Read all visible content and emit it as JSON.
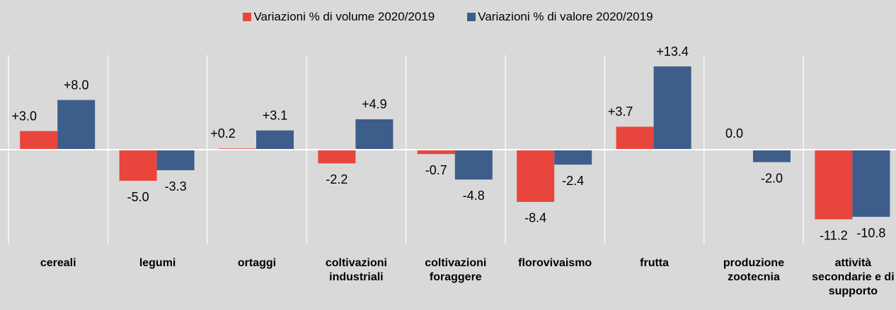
{
  "chart_data": {
    "type": "bar",
    "categories": [
      "cereali",
      "legumi",
      "ortaggi",
      "coltivazioni industriali",
      "coltivazioni foraggere",
      "florovivaismo",
      "frutta",
      "produzione zootecnia",
      "attività secondarie e di supporto"
    ],
    "series": [
      {
        "name": "Variazioni % di volume 2020/2019",
        "color": "#e8453c",
        "values": [
          3.0,
          -5.0,
          0.2,
          -2.2,
          -0.7,
          -8.4,
          3.7,
          0.0,
          -11.2
        ],
        "value_labels": [
          "+3.0",
          "-5.0",
          "+0.2",
          "-2.2",
          "-0.7",
          "-8.4",
          "+3.7",
          "0.0",
          "-11.2"
        ]
      },
      {
        "name": "Variazioni % di valore 2020/2019",
        "color": "#3d5d8a",
        "values": [
          8.0,
          -3.3,
          3.1,
          4.9,
          -4.8,
          -2.4,
          13.4,
          -2.0,
          -10.8
        ],
        "value_labels": [
          "+8.0",
          "-3.3",
          "+3.1",
          "+4.9",
          "-4.8",
          "-2.4",
          "+13.4",
          "-2.0",
          "-10.8"
        ]
      }
    ]
  }
}
